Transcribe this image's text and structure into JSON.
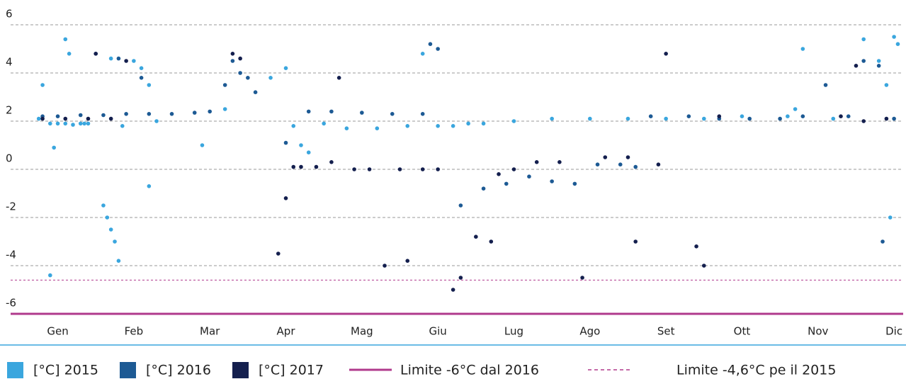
{
  "chart_data": {
    "type": "scatter",
    "xlim": [
      -0.62,
      11.12
    ],
    "ylim": [
      -6.2,
      6.1
    ],
    "xticks": [
      {
        "value": 0,
        "label": "Gen"
      },
      {
        "value": 1,
        "label": "Feb"
      },
      {
        "value": 2,
        "label": "Mar"
      },
      {
        "value": 3,
        "label": "Apr"
      },
      {
        "value": 4,
        "label": "Mag"
      },
      {
        "value": 5,
        "label": "Giu"
      },
      {
        "value": 6,
        "label": "Lug"
      },
      {
        "value": 7,
        "label": "Ago"
      },
      {
        "value": 8,
        "label": "Set"
      },
      {
        "value": 9,
        "label": "Ott"
      },
      {
        "value": 10,
        "label": "Nov"
      },
      {
        "value": 11,
        "label": "Dic"
      }
    ],
    "yticks": [
      -6,
      -4,
      -2,
      0,
      2,
      4,
      6
    ],
    "grid": true,
    "series": [
      {
        "name": "[°C] 2015",
        "color": "#3aa6de",
        "x": [
          -0.25,
          -0.2,
          -0.1,
          0,
          0.1,
          0.2,
          0.3,
          0.35,
          0.4,
          0.1,
          0.15,
          -0.05,
          0.6,
          0.65,
          0.7,
          0.75,
          0.8,
          0.85,
          1.0,
          1.1,
          1.2,
          1.3,
          1.9,
          2.2,
          2.8,
          3.0,
          3.1,
          3.2,
          3.3,
          3.5,
          3.8,
          4.2,
          4.6,
          4.8,
          5.0,
          5.2,
          5.4,
          5.6,
          6.0,
          6.5,
          7.0,
          7.5,
          8.0,
          8.5,
          9.0,
          9.6,
          9.7,
          9.8,
          10.2,
          10.6,
          10.8,
          10.9,
          11.0,
          11.05,
          10.95,
          -0.1,
          0.7,
          1.2
        ],
        "values": [
          2.1,
          3.5,
          1.9,
          1.9,
          1.9,
          1.85,
          1.9,
          1.9,
          1.9,
          5.4,
          4.8,
          0.9,
          -1.5,
          -2.0,
          -2.5,
          -3.0,
          -3.8,
          1.8,
          4.5,
          4.2,
          3.5,
          2.0,
          1.0,
          2.5,
          3.8,
          4.2,
          1.8,
          1.0,
          0.7,
          1.9,
          1.7,
          1.7,
          1.8,
          4.8,
          1.8,
          1.8,
          1.9,
          1.9,
          2.0,
          2.1,
          2.1,
          2.1,
          2.1,
          2.1,
          2.2,
          2.2,
          2.5,
          5.0,
          2.1,
          5.4,
          4.5,
          3.5,
          5.5,
          5.2,
          -2.0,
          -4.4,
          4.6,
          -0.7
        ]
      },
      {
        "name": "[°C] 2016",
        "color": "#1d5a94",
        "x": [
          -0.2,
          0,
          0.3,
          0.6,
          0.9,
          1.2,
          1.5,
          1.8,
          2.0,
          2.2,
          2.3,
          2.4,
          2.5,
          2.6,
          0.5,
          0.8,
          1.1,
          3.0,
          3.3,
          3.6,
          4.0,
          4.4,
          4.8,
          4.9,
          5.0,
          5.3,
          5.6,
          5.9,
          6.2,
          6.5,
          6.8,
          7.1,
          7.4,
          7.6,
          7.8,
          8.3,
          8.7,
          9.1,
          9.5,
          9.8,
          10.1,
          10.4,
          10.6,
          10.8,
          10.85,
          11.0
        ],
        "values": [
          2.2,
          2.2,
          2.25,
          2.25,
          2.3,
          2.3,
          2.3,
          2.35,
          2.4,
          3.5,
          4.5,
          4.0,
          3.8,
          3.2,
          4.8,
          4.6,
          3.8,
          1.1,
          2.4,
          2.4,
          2.35,
          2.3,
          2.3,
          5.2,
          5.0,
          -1.5,
          -0.8,
          -0.6,
          -0.3,
          -0.5,
          -0.6,
          0.2,
          0.2,
          0.1,
          2.2,
          2.2,
          2.1,
          2.1,
          2.1,
          2.2,
          3.5,
          2.2,
          4.5,
          4.3,
          -3.0,
          2.1
        ]
      },
      {
        "name": "[°C] 2017",
        "color": "#141f4e",
        "x": [
          -0.2,
          0.1,
          0.4,
          0.7,
          0.5,
          0.9,
          2.3,
          2.4,
          3.0,
          2.9,
          3.1,
          3.2,
          3.4,
          3.6,
          3.9,
          3.7,
          4.1,
          4.3,
          4.5,
          4.6,
          4.8,
          5.0,
          5.2,
          5.3,
          5.5,
          5.7,
          5.8,
          6.0,
          6.3,
          6.6,
          6.9,
          7.2,
          7.5,
          7.6,
          7.9,
          8.0,
          8.4,
          8.5,
          8.7,
          10.3,
          10.5,
          10.6,
          10.9
        ],
        "values": [
          2.1,
          2.1,
          2.1,
          2.1,
          4.8,
          4.5,
          4.8,
          4.6,
          -1.2,
          -3.5,
          0.1,
          0.1,
          0.1,
          0.3,
          0.0,
          3.8,
          0.0,
          -4.0,
          0.0,
          -3.8,
          0.0,
          0.0,
          -5.0,
          -4.5,
          -2.8,
          -3.0,
          -0.2,
          0.0,
          0.3,
          0.3,
          -4.5,
          0.5,
          0.5,
          -3.0,
          0.2,
          4.8,
          -3.2,
          -4.0,
          2.2,
          2.2,
          4.3,
          2.0,
          2.1
        ]
      }
    ],
    "ref_lines": [
      {
        "name": "Limite -6°C dal 2016",
        "value": -6,
        "color": "#b03a8c",
        "dashed": false
      },
      {
        "name": "Limite -4,6°C pe il 2015",
        "value": -4.6,
        "color": "#b03a8c",
        "dashed": true
      }
    ]
  }
}
